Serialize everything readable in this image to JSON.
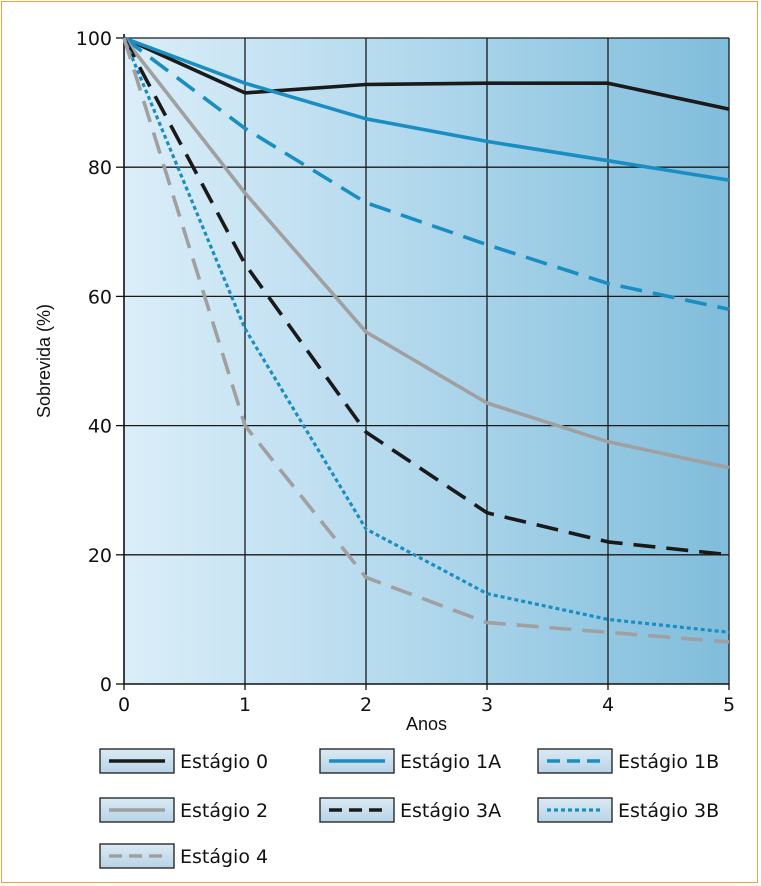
{
  "chart_data": {
    "type": "line",
    "xlabel": "Anos",
    "ylabel": "Sobrevida (%)",
    "xlim": [
      0,
      5
    ],
    "ylim": [
      0,
      100
    ],
    "x_ticks": [
      "0",
      "1",
      "2",
      "3",
      "4",
      "5"
    ],
    "y_ticks": [
      "0",
      "20",
      "40",
      "60",
      "80",
      "100"
    ],
    "grid": true,
    "legend_position": "bottom",
    "x": [
      0,
      1,
      2,
      3,
      4,
      5
    ],
    "series": [
      {
        "name": "Estágio 0",
        "values": [
          100,
          91.5,
          92.8,
          93,
          93,
          89
        ],
        "color": "#1a1a1a",
        "style": "solid"
      },
      {
        "name": "Estágio 1A",
        "values": [
          100,
          93,
          87.5,
          84,
          81,
          78
        ],
        "color": "#1a8ec2",
        "style": "solid"
      },
      {
        "name": "Estágio 1B",
        "values": [
          100,
          86,
          74.5,
          68,
          62,
          58
        ],
        "color": "#1a8ec2",
        "style": "dashed"
      },
      {
        "name": "Estágio 2",
        "values": [
          100,
          76,
          54.5,
          43.5,
          37.5,
          33.5
        ],
        "color": "#a0a0a0",
        "style": "solid"
      },
      {
        "name": "Estágio 3A",
        "values": [
          100,
          65,
          39,
          26.5,
          22,
          20
        ],
        "color": "#1a1a1a",
        "style": "dashed"
      },
      {
        "name": "Estágio 3B",
        "values": [
          100,
          55,
          24,
          14,
          10,
          8
        ],
        "color": "#1a8ec2",
        "style": "dotted"
      },
      {
        "name": "Estágio 4",
        "values": [
          100,
          40,
          16.5,
          9.5,
          8,
          6.5
        ],
        "color": "#a0a0a0",
        "style": "dashed"
      }
    ]
  }
}
